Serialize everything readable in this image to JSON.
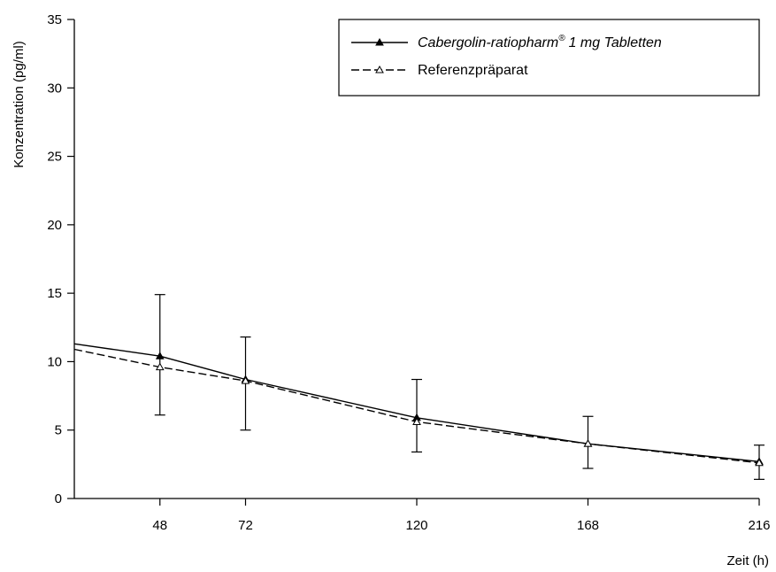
{
  "chart_data": {
    "type": "line",
    "xlabel": "Zeit (h)",
    "ylabel": "Konzentration (pg/ml)",
    "xlim": [
      24,
      216
    ],
    "ylim": [
      0,
      35
    ],
    "x_ticks": [
      48,
      72,
      120,
      168,
      216
    ],
    "x_tick_labels": [
      "48",
      "72",
      "120",
      "168",
      "216"
    ],
    "y_ticks": [
      0,
      5,
      10,
      15,
      20,
      25,
      30,
      35
    ],
    "y_tick_labels": [
      "0",
      "5",
      "10",
      "15",
      "20",
      "25",
      "30",
      "35"
    ],
    "grid": false,
    "legend_position": "top-right",
    "series": [
      {
        "name": "Cabergolin-ratiopharm",
        "name_suffix": "1 mg Tabletten",
        "registered_mark": "®",
        "style": "solid",
        "marker": "filled-triangle",
        "color": "#000000",
        "points": [
          {
            "x": 24,
            "y": 11.3,
            "err_high": null,
            "err_low": null
          },
          {
            "x": 48,
            "y": 10.4,
            "err_high": 14.9,
            "err_low": 6.1
          },
          {
            "x": 72,
            "y": 8.7,
            "err_high": 11.8,
            "err_low": 5.0
          },
          {
            "x": 120,
            "y": 5.9,
            "err_high": 8.7,
            "err_low": 3.4
          },
          {
            "x": 168,
            "y": 4.0,
            "err_high": 6.0,
            "err_low": 2.2
          },
          {
            "x": 216,
            "y": 2.7,
            "err_high": 3.9,
            "err_low": 1.4
          }
        ]
      },
      {
        "name": "Referenzpräparat",
        "style": "dashed",
        "marker": "open-triangle",
        "color": "#000000",
        "points": [
          {
            "x": 24,
            "y": 10.9
          },
          {
            "x": 48,
            "y": 9.6
          },
          {
            "x": 72,
            "y": 8.6
          },
          {
            "x": 120,
            "y": 5.6
          },
          {
            "x": 168,
            "y": 4.0
          },
          {
            "x": 216,
            "y": 2.6
          }
        ]
      }
    ]
  }
}
